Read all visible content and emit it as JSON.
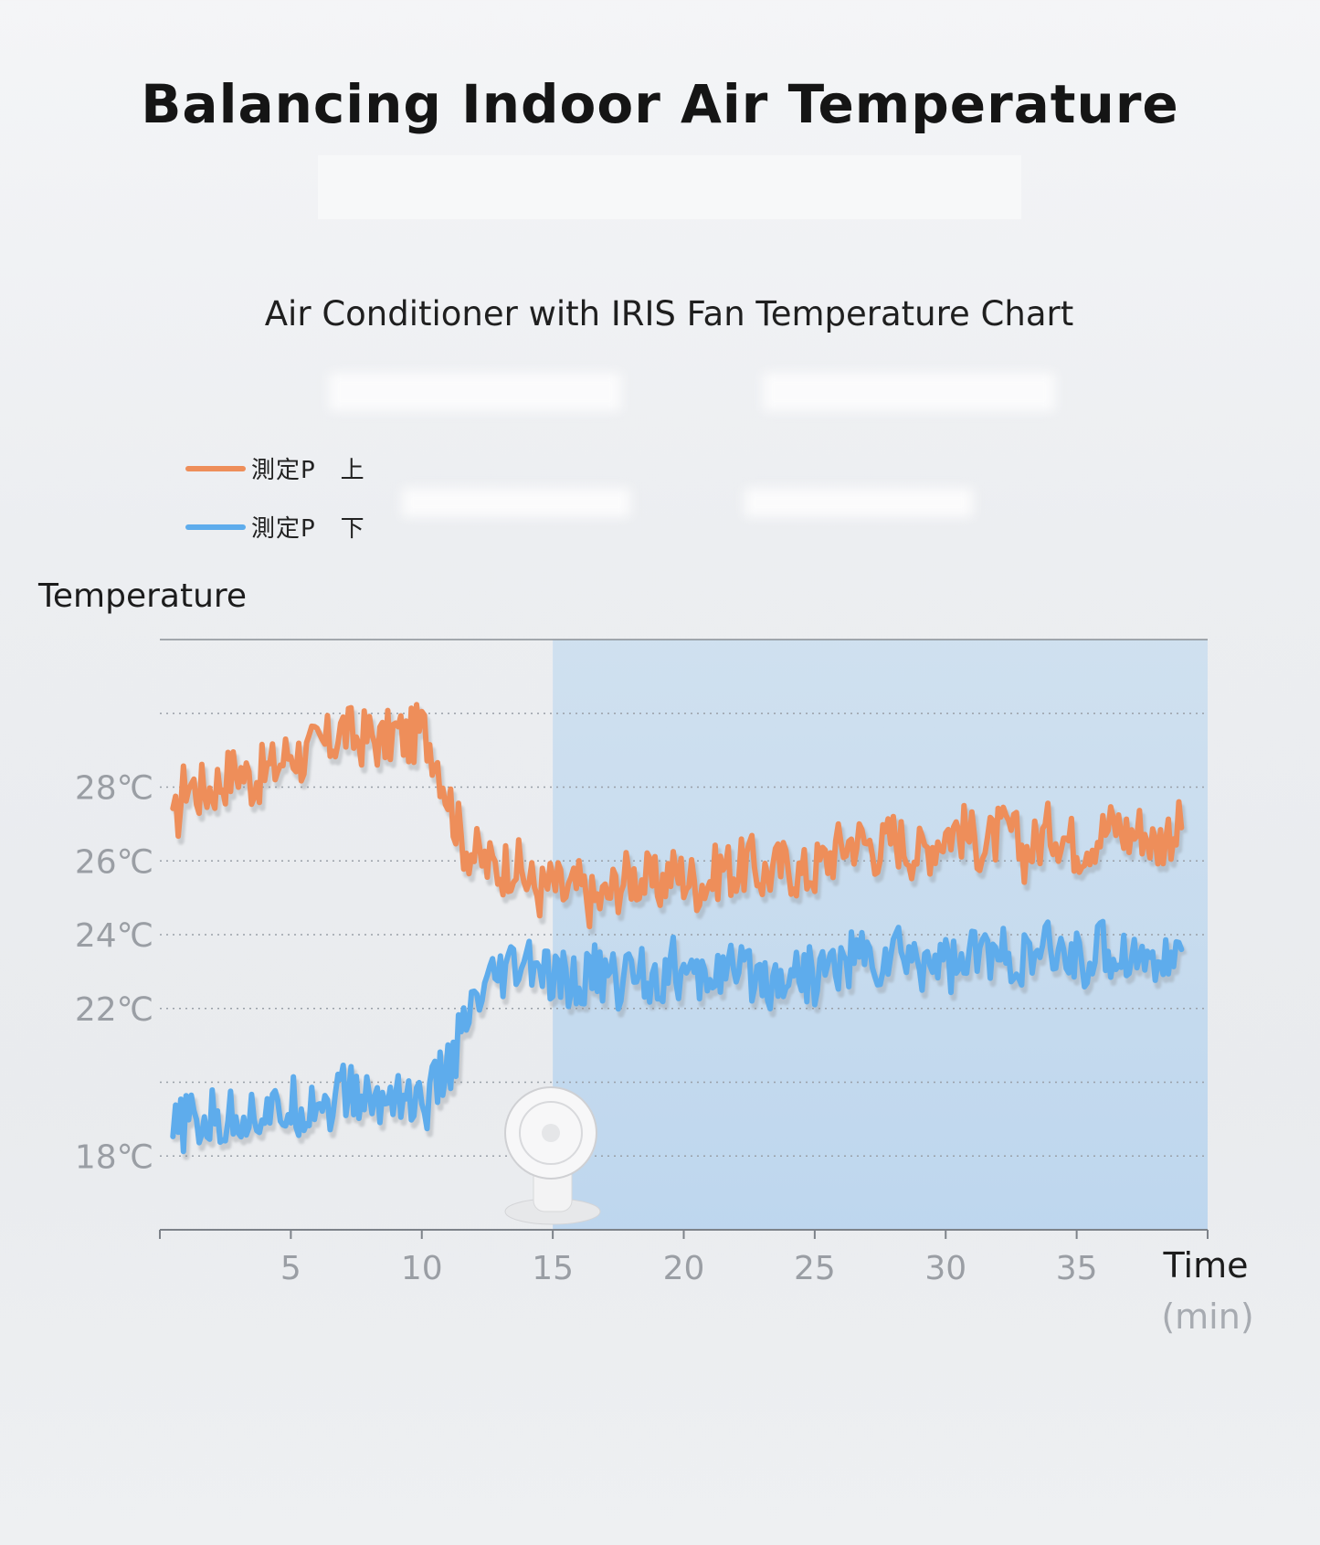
{
  "header": {
    "title": "Balancing Indoor Air Temperature"
  },
  "chart_data": {
    "type": "line",
    "title": "Air Conditioner with IRIS Fan Temperature Chart",
    "ylabel": "Temperature",
    "xlabel": "Time",
    "xunit": "(min)",
    "xlim": [
      0,
      40
    ],
    "ylim": [
      16,
      32
    ],
    "x_ticks": [
      5,
      10,
      15,
      20,
      25,
      30,
      35
    ],
    "y_ticks": [
      {
        "value": 18,
        "label": "18℃"
      },
      {
        "value": 22,
        "label": "22℃"
      },
      {
        "value": 24,
        "label": "24℃"
      },
      {
        "value": 26,
        "label": "26℃"
      },
      {
        "value": 28,
        "label": "28℃"
      }
    ],
    "gridlines_y": [
      18,
      20,
      22,
      24,
      26,
      28,
      30
    ],
    "grid": true,
    "shaded_region": {
      "from": 15,
      "to": 40
    },
    "legend_position": "top-left",
    "series": [
      {
        "name": "測定P　上",
        "color": "#ee8e5a",
        "x": [
          0.5,
          1,
          1.5,
          2,
          2.5,
          3,
          3.5,
          4,
          4.5,
          5,
          5.5,
          6,
          6.5,
          7,
          7.5,
          8,
          8.5,
          9,
          9.5,
          10,
          10.5,
          11,
          11.5,
          12,
          12.5,
          13,
          13.5,
          14,
          14.5,
          15,
          15.5,
          16,
          16.5,
          17,
          17.5,
          18,
          18.5,
          19,
          19.5,
          20,
          20.5,
          21,
          21.5,
          22,
          22.5,
          23,
          23.5,
          24,
          24.5,
          25,
          25.5,
          26,
          26.5,
          27,
          27.5,
          28,
          28.5,
          29,
          29.5,
          30,
          30.5,
          31,
          31.5,
          32,
          32.5,
          33,
          33.5,
          34,
          34.5,
          35,
          35.5,
          36,
          36.5,
          37,
          37.5,
          38,
          38.5,
          39
        ],
        "y": [
          26.8,
          28.2,
          27.9,
          28.0,
          28.3,
          28.5,
          28.2,
          28.4,
          28.6,
          29.0,
          28.8,
          29.1,
          29.2,
          29.6,
          29.3,
          29.4,
          29.2,
          29.5,
          29.3,
          29.6,
          29.0,
          27.8,
          26.6,
          26.2,
          25.9,
          25.8,
          26.0,
          25.5,
          25.2,
          25.4,
          25.1,
          25.3,
          24.9,
          25.0,
          25.4,
          25.6,
          25.5,
          25.3,
          25.7,
          25.6,
          25.4,
          25.5,
          25.9,
          25.7,
          26.0,
          25.6,
          25.8,
          25.9,
          25.6,
          25.8,
          26.1,
          26.4,
          26.6,
          26.5,
          26.3,
          26.7,
          26.4,
          26.2,
          26.5,
          26.8,
          26.9,
          26.6,
          26.4,
          26.7,
          26.8,
          26.2,
          26.5,
          26.9,
          26.7,
          26.4,
          26.6,
          26.8,
          27.0,
          26.7,
          26.9,
          26.4,
          26.8,
          26.9
        ]
      },
      {
        "name": "測定P　下",
        "color": "#5eacec",
        "x": [
          0.5,
          1,
          1.5,
          2,
          2.5,
          3,
          3.5,
          4,
          4.5,
          5,
          5.5,
          6,
          6.5,
          7,
          7.5,
          8,
          8.5,
          9,
          9.5,
          10,
          10.5,
          11,
          11.5,
          12,
          12.5,
          13,
          13.5,
          14,
          14.5,
          15,
          15.5,
          16,
          16.5,
          17,
          17.5,
          18,
          18.5,
          19,
          19.5,
          20,
          20.5,
          21,
          21.5,
          22,
          22.5,
          23,
          23.5,
          24,
          24.5,
          25,
          25.5,
          26,
          26.5,
          27,
          27.5,
          28,
          28.5,
          29,
          29.5,
          30,
          30.5,
          31,
          31.5,
          32,
          32.5,
          33,
          33.5,
          34,
          34.5,
          35,
          35.5,
          36,
          36.5,
          37,
          37.5,
          38,
          38.5,
          39
        ],
        "y": [
          18.5,
          19.0,
          18.8,
          19.0,
          18.9,
          19.2,
          19.1,
          19.3,
          19.0,
          19.4,
          19.3,
          19.6,
          19.4,
          19.8,
          19.6,
          19.5,
          19.4,
          19.9,
          19.5,
          19.3,
          19.8,
          20.4,
          21.2,
          22.0,
          22.4,
          22.8,
          23.0,
          23.2,
          23.1,
          22.6,
          22.8,
          22.5,
          23.0,
          22.9,
          22.7,
          23.1,
          23.0,
          22.8,
          23.2,
          22.9,
          22.6,
          23.0,
          23.1,
          22.8,
          23.0,
          22.9,
          22.7,
          23.1,
          23.0,
          22.8,
          23.2,
          23.1,
          23.5,
          23.3,
          23.1,
          23.6,
          23.4,
          23.2,
          23.5,
          23.3,
          23.1,
          23.4,
          23.6,
          23.3,
          23.5,
          23.2,
          23.4,
          23.6,
          23.3,
          23.5,
          23.2,
          23.7,
          23.4,
          23.6,
          23.3,
          23.5,
          23.2,
          23.6
        ]
      }
    ]
  }
}
